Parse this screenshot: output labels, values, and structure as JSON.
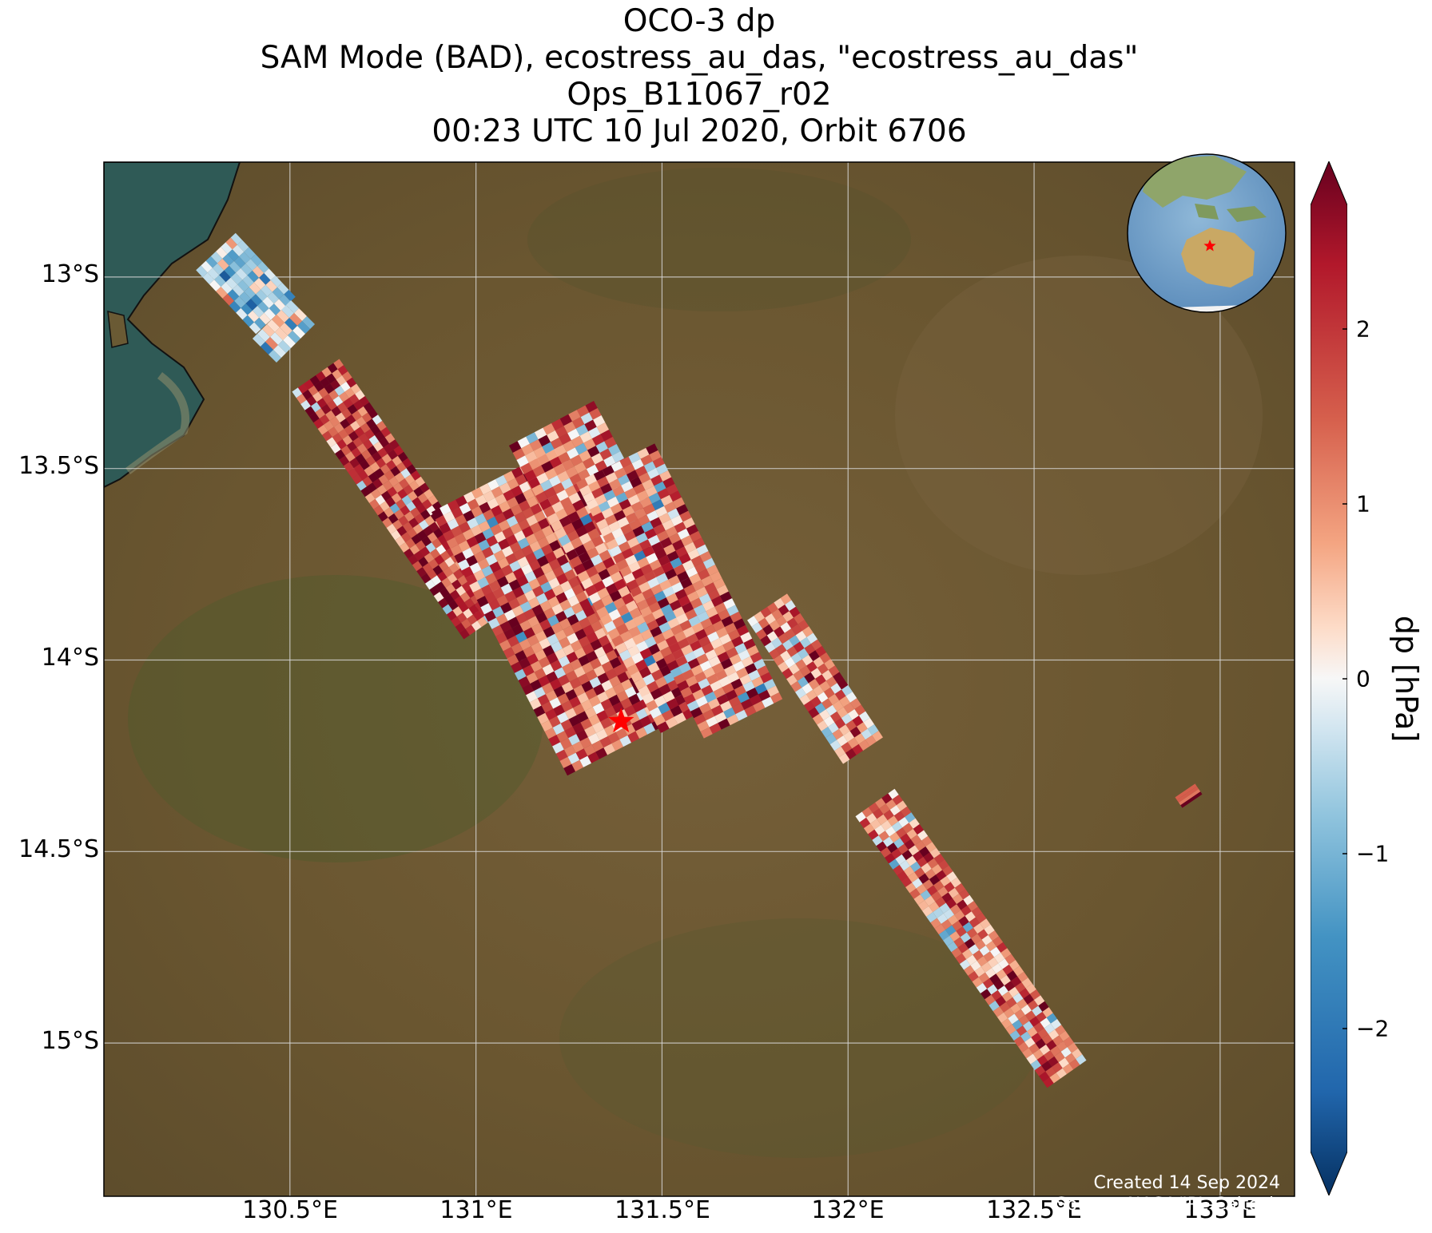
{
  "title": {
    "line1": "OCO-3 dp",
    "line2": "SAM Mode (BAD), ecostress_au_das, \"ecostress_au_das\"",
    "line3": "Ops_B11067_r02",
    "line4": "00:23 UTC 10 Jul 2020, Orbit 6706"
  },
  "map": {
    "lon_range": [
      130.0,
      133.2
    ],
    "lat_range": [
      -15.4,
      -12.7
    ],
    "lat_ticks": [
      "13°S",
      "13.5°S",
      "14°S",
      "14.5°S",
      "15°S"
    ],
    "lon_ticks": [
      "130.5°E",
      "131°E",
      "131.5°E",
      "132°E",
      "132.5°E",
      "133°E"
    ],
    "target_marker": {
      "lon": 131.39,
      "lat": -14.16,
      "color": "#ff0000",
      "icon": "star-icon"
    },
    "background": "satellite-imagery",
    "land_color": "#6f5a32",
    "sea_color": "#2f5a56"
  },
  "credits": {
    "created": "Created 14 Sep 2024",
    "source": "Source: NASA/JPL-Caltech"
  },
  "colorbar": {
    "label": "dp [hPa]",
    "range": [
      -2.7,
      2.7
    ],
    "ticks": [
      "2",
      "1",
      "0",
      "−1",
      "−2"
    ],
    "extend": "both",
    "cmap": "RdBu_r"
  },
  "inset_globe": {
    "region": "Australia and Asia",
    "marker_color": "#ff0000"
  }
}
